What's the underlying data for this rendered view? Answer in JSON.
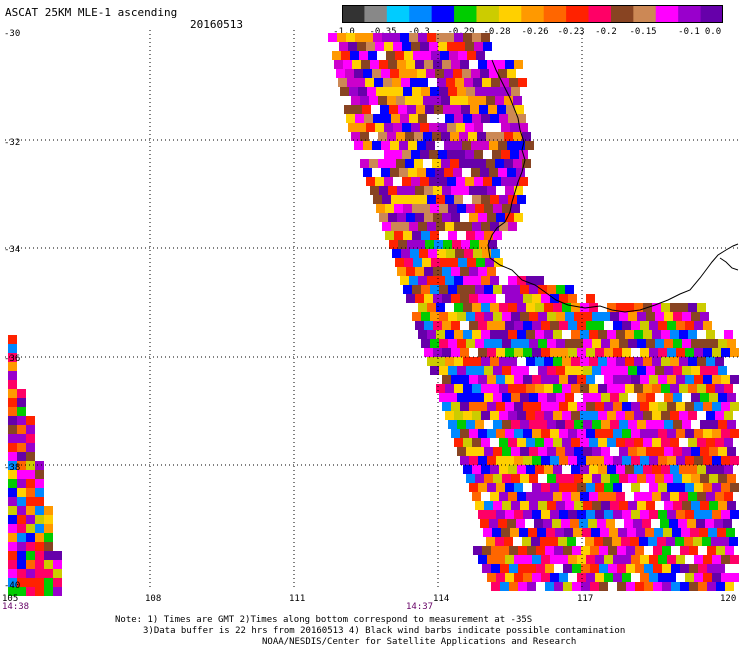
{
  "header": {
    "title": "ASCAT 25KM MLE-1 ascending",
    "date": "20160513"
  },
  "colorbar": {
    "colors": [
      "#333333",
      "#888888",
      "#00ccff",
      "#0088ff",
      "#0000ff",
      "#00cc00",
      "#cccc00",
      "#ffd000",
      "#ff9900",
      "#ff6600",
      "#ff2200",
      "#ff0066",
      "#884422",
      "#cc8855",
      "#ff00ff",
      "#9900cc",
      "#6600aa"
    ],
    "labels": [
      "-1.0",
      "-0.35",
      "-0.3",
      "-0.29",
      "-0.28",
      "-0.26",
      "-0.23",
      "-0.2",
      "-0.15",
      "-0.1",
      "0.0"
    ]
  },
  "map": {
    "lon_labels": [
      "105",
      "108",
      "111",
      "114",
      "117",
      "120"
    ],
    "lat_labels": [
      "-30",
      "-32",
      "-34",
      "-36",
      "-38",
      "-40"
    ],
    "time_labels": [
      "14:38",
      "14:37"
    ],
    "time_color": "#660066"
  },
  "footer": {
    "line1": "Note: 1) Times are GMT 2)Times along bottom correspond to measurement at -35S",
    "line2": "3)Data buffer is 22 hrs from 20160513 4) Black wind barbs indicate possible contamination",
    "line3": "NOAA/NESDIS/Center for Satellite Applications and Research"
  }
}
